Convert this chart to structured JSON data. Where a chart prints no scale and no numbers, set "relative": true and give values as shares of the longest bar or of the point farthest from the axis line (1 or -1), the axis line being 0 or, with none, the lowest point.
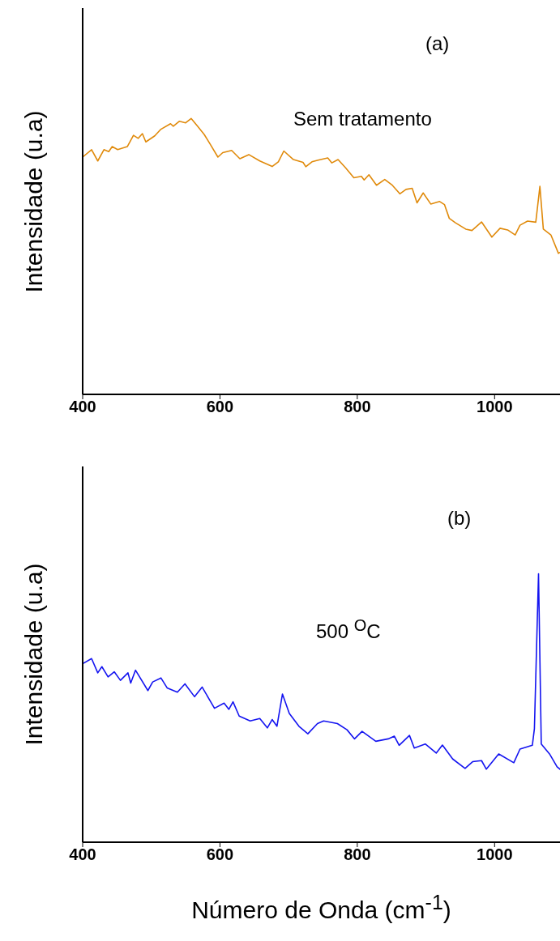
{
  "chart_data": [
    {
      "type": "line",
      "relative": true,
      "ylabel": "Intensidade (u.a)",
      "annotations": [
        "(a)",
        "Sem tratamento"
      ],
      "xlim": [
        400,
        1100
      ],
      "xticks": [
        400,
        600,
        800,
        1000
      ],
      "grid": false,
      "legend": false,
      "marker": "none",
      "line_style": "solid",
      "series": [
        {
          "color": "#e08a0b",
          "x": [
            400,
            413,
            422,
            431,
            438,
            443,
            451,
            465,
            474,
            481,
            487,
            492,
            505,
            514,
            528,
            532,
            541,
            550,
            558,
            568,
            577,
            586,
            597,
            604,
            617,
            629,
            642,
            658,
            676,
            685,
            693,
            707,
            721,
            725,
            734,
            743,
            757,
            763,
            772,
            783,
            795,
            806,
            810,
            817,
            828,
            840,
            851,
            862,
            871,
            880,
            887,
            896,
            907,
            920,
            927,
            934,
            943,
            958,
            967,
            981,
            996,
            1008,
            1019,
            1030,
            1037,
            1048,
            1060,
            1066,
            1071,
            1082,
            1093,
            1100
          ],
          "values": [
            0.86,
            0.887,
            0.846,
            0.887,
            0.88,
            0.898,
            0.887,
            0.898,
            0.939,
            0.928,
            0.945,
            0.915,
            0.937,
            0.961,
            0.981,
            0.972,
            0.99,
            0.984,
            1,
            0.97,
            0.942,
            0.906,
            0.86,
            0.876,
            0.884,
            0.854,
            0.869,
            0.846,
            0.826,
            0.843,
            0.882,
            0.851,
            0.841,
            0.825,
            0.843,
            0.849,
            0.857,
            0.839,
            0.851,
            0.821,
            0.785,
            0.79,
            0.777,
            0.796,
            0.758,
            0.779,
            0.758,
            0.727,
            0.743,
            0.747,
            0.694,
            0.73,
            0.69,
            0.699,
            0.688,
            0.638,
            0.622,
            0.599,
            0.594,
            0.625,
            0.57,
            0.602,
            0.596,
            0.578,
            0.613,
            0.628,
            0.624,
            0.754,
            0.599,
            0.578,
            0.511,
            0.522
          ]
        }
      ]
    },
    {
      "type": "line",
      "relative": true,
      "ylabel": "Intensidade (u.a)",
      "xlabel": "Número de Onda (cm$^{-1}$)",
      "annotations": [
        "(b)",
        "500 $^{O}$C"
      ],
      "xlim": [
        400,
        1100
      ],
      "xticks": [
        400,
        600,
        800,
        1000
      ],
      "grid": false,
      "legend": false,
      "marker": "none",
      "line_style": "solid",
      "series": [
        {
          "color": "#1414f0",
          "x": [
            400,
            413,
            422,
            428,
            437,
            446,
            455,
            466,
            470,
            477,
            495,
            502,
            514,
            523,
            538,
            549,
            563,
            574,
            592,
            606,
            613,
            619,
            628,
            644,
            658,
            669,
            676,
            683,
            691,
            701,
            715,
            728,
            742,
            751,
            771,
            785,
            796,
            807,
            827,
            845,
            854,
            861,
            876,
            883,
            899,
            915,
            924,
            939,
            957,
            968,
            981,
            988,
            1006,
            1028,
            1037,
            1055,
            1058,
            1064,
            1068,
            1080,
            1091,
            1100
          ],
          "values": [
            0.665,
            0.684,
            0.631,
            0.654,
            0.616,
            0.635,
            0.603,
            0.631,
            0.593,
            0.641,
            0.565,
            0.597,
            0.612,
            0.575,
            0.559,
            0.59,
            0.542,
            0.578,
            0.499,
            0.518,
            0.495,
            0.523,
            0.47,
            0.452,
            0.461,
            0.426,
            0.457,
            0.432,
            0.552,
            0.48,
            0.432,
            0.404,
            0.442,
            0.452,
            0.442,
            0.419,
            0.385,
            0.413,
            0.376,
            0.385,
            0.395,
            0.361,
            0.398,
            0.351,
            0.366,
            0.332,
            0.362,
            0.31,
            0.275,
            0.3,
            0.304,
            0.272,
            0.329,
            0.296,
            0.347,
            0.361,
            0.423,
            1,
            0.366,
            0.329,
            0.281,
            0.262
          ]
        }
      ]
    }
  ]
}
